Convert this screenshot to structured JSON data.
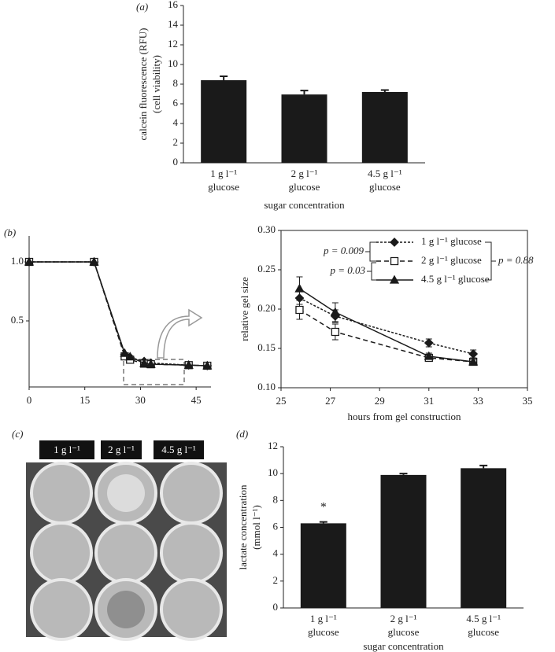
{
  "chart_data": [
    {
      "type": "bar",
      "label": "(a)",
      "ylabel": "calcein fluorescence (RFU)\n(cell viability)",
      "xlabel": "sugar concentration",
      "categories": [
        "1 g l⁻¹\nglucose",
        "2 g l⁻¹\nglucose",
        "4.5 g l⁻¹\nglucose"
      ],
      "values": [
        8.4,
        6.95,
        7.2
      ],
      "errors": [
        0.4,
        0.4,
        0.2
      ],
      "color": "#1a1a1a",
      "ylim": [
        0,
        16
      ],
      "yticks": [
        0,
        2,
        4,
        6,
        8,
        10,
        12,
        14,
        16
      ]
    },
    {
      "type": "line",
      "label": "(b)",
      "x": [
        0,
        17.5,
        25.75,
        27.2,
        31,
        32.8,
        43,
        48
      ],
      "xlim": [
        0,
        49
      ],
      "xticks": [
        0,
        15,
        30,
        45
      ],
      "ylim": [
        -0.06,
        1.22
      ],
      "yticks": [
        {
          "value": 0.5,
          "label": "0.5"
        },
        {
          "value": 1,
          "label": "1.0"
        }
      ],
      "series": [
        {
          "color": "#1a1a1a",
          "dash": "3,2",
          "marker": "diamond",
          "filled": true,
          "values": [
            1,
            1,
            0.214,
            0.191,
            0.157,
            0.143,
            0.125,
            0.12
          ]
        },
        {
          "color": "#1a1a1a",
          "dash": "6,4",
          "marker": "square",
          "filled": false,
          "values": [
            1,
            1,
            0.199,
            0.171,
            0.138,
            0.133,
            0.125,
            0.12
          ]
        },
        {
          "color": "#1a1a1a",
          "dash": "none",
          "marker": "triangle",
          "filled": true,
          "values": [
            1,
            1,
            0.226,
            0.196,
            0.14,
            0.133,
            0.125,
            0.12
          ]
        }
      ]
    },
    {
      "type": "line",
      "frame": true,
      "ylabel": "relative gel size",
      "xlabel": "hours from gel construction",
      "x": [
        25.75,
        27.2,
        31,
        32.8
      ],
      "xlim": [
        25,
        35
      ],
      "xticks": [
        25,
        27,
        29,
        31,
        33,
        35
      ],
      "ylim": [
        0.1,
        0.3
      ],
      "yticks": [
        {
          "value": 0.1,
          "label": "0.10"
        },
        0.15,
        {
          "value": 0.2,
          "label": "0.20"
        },
        0.25,
        {
          "value": 0.3,
          "label": "0.30"
        }
      ],
      "series": [
        {
          "name": "1 g l⁻¹ glucose",
          "color": "#1a1a1a",
          "dash": "3,2",
          "marker": "diamond",
          "filled": true,
          "values": [
            0.214,
            0.191,
            0.157,
            0.143
          ],
          "errors": [
            0.008,
            0.008,
            0.005,
            0.005
          ]
        },
        {
          "name": "2 g l⁻¹ glucose",
          "color": "#1a1a1a",
          "dash": "6,4",
          "marker": "square",
          "filled": false,
          "values": [
            0.199,
            0.171,
            0.138,
            0.133
          ],
          "errors": [
            0.012,
            0.01,
            0.004,
            0.003
          ]
        },
        {
          "name": "4.5 g l⁻¹ glucose",
          "color": "#1a1a1a",
          "dash": "none",
          "marker": "triangle",
          "filled": true,
          "values": [
            0.226,
            0.196,
            0.14,
            0.133
          ],
          "errors": [
            0.015,
            0.012,
            0.004,
            0.003
          ]
        }
      ],
      "annotations": [
        "p = 0.009",
        "p = 0.03",
        "p = 0.88"
      ]
    },
    {
      "type": "bar",
      "label": "(d)",
      "ylabel": "lactate concentration\n(mmol l⁻¹)",
      "xlabel": "sugar concentration",
      "categories": [
        "1 g l⁻¹\nglucose",
        "2 g l⁻¹\nglucose",
        "4.5 g l⁻¹\nglucose"
      ],
      "values": [
        6.3,
        9.9,
        10.4
      ],
      "errors": [
        0.1,
        0.1,
        0.2
      ],
      "value_annotations": [
        "*",
        null,
        null
      ],
      "color": "#1a1a1a",
      "ylim": [
        0,
        12
      ],
      "yticks": [
        0,
        2,
        4,
        6,
        8,
        10,
        12
      ]
    }
  ],
  "photo": {
    "label": "(c)",
    "captions": [
      "1 g l⁻¹",
      "2 g l⁻¹",
      "4.5 g l⁻¹"
    ]
  }
}
